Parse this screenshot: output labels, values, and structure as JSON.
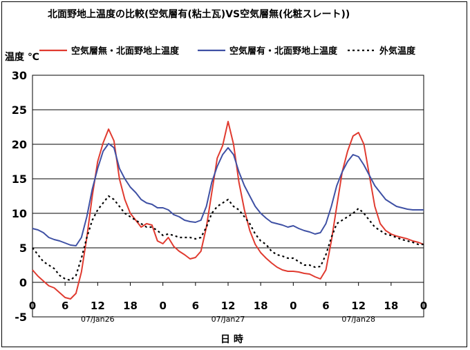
{
  "chart_data": {
    "type": "line",
    "title": "北面野地上温度の比較(空気層有(粘土瓦)VS空気層無(化粧スレート))",
    "ylabel": "温度 ℃",
    "xlabel": "日 時",
    "ylim": [
      -5,
      30
    ],
    "yticks": [
      "30",
      "25",
      "20",
      "15",
      "10",
      "5",
      "0",
      "-5"
    ],
    "xticks": [
      "0",
      "6",
      "12",
      "18",
      "0",
      "6",
      "12",
      "18",
      "0",
      "6",
      "12",
      "18",
      "0"
    ],
    "date_labels": [
      "07/Jan26",
      "07/Jan27",
      "07/Jan28"
    ],
    "grid": true,
    "legend_position": "top",
    "x_hours": [
      0,
      1,
      2,
      3,
      4,
      5,
      6,
      7,
      8,
      9,
      10,
      11,
      12,
      13,
      14,
      15,
      16,
      17,
      18,
      19,
      20,
      21,
      22,
      23,
      24,
      25,
      26,
      27,
      28,
      29,
      30,
      31,
      32,
      33,
      34,
      35,
      36,
      37,
      38,
      39,
      40,
      41,
      42,
      43,
      44,
      45,
      46,
      47,
      48,
      49,
      50,
      51,
      52,
      53,
      54,
      55,
      56,
      57,
      58,
      59,
      60,
      61,
      62,
      63,
      64,
      65,
      66,
      67,
      68,
      69,
      70,
      71,
      72
    ],
    "series": [
      {
        "name": "空気層無・北面野地上温度",
        "color": "#e03a2f",
        "style": "solid",
        "values": [
          1.8,
          0.9,
          0.2,
          -0.5,
          -0.8,
          -1.5,
          -2.2,
          -2.4,
          -1.6,
          1.5,
          6.5,
          12.5,
          17.5,
          20.2,
          22.2,
          20.5,
          15.0,
          12.0,
          10.0,
          9.0,
          8.0,
          8.5,
          8.3,
          6.0,
          5.6,
          6.5,
          5.2,
          4.5,
          4.0,
          3.4,
          3.6,
          4.5,
          8.0,
          13.0,
          18.0,
          19.8,
          23.3,
          20.0,
          14.5,
          10.5,
          7.5,
          5.5,
          4.3,
          3.5,
          2.8,
          2.2,
          1.8,
          1.6,
          1.6,
          1.5,
          1.3,
          1.2,
          0.8,
          0.5,
          1.8,
          6.0,
          11.0,
          16.0,
          19.0,
          21.2,
          21.7,
          20.0,
          15.5,
          11.0,
          8.5,
          7.5,
          7.0,
          6.7,
          6.5,
          6.3,
          6.0,
          5.8,
          5.5
        ]
      },
      {
        "name": "空気層有・北面野地上温度",
        "color": "#3e50a4",
        "style": "solid",
        "values": [
          7.8,
          7.6,
          7.2,
          6.5,
          6.2,
          6.0,
          5.7,
          5.4,
          5.3,
          6.5,
          9.5,
          13.5,
          16.5,
          19.0,
          20.1,
          19.5,
          16.5,
          15.0,
          13.8,
          13.0,
          12.0,
          11.5,
          11.3,
          10.8,
          10.8,
          10.5,
          9.8,
          9.5,
          9.0,
          8.8,
          8.7,
          9.0,
          11.0,
          14.5,
          16.8,
          18.5,
          19.5,
          18.5,
          16.0,
          14.0,
          12.5,
          11.0,
          10.0,
          9.3,
          8.7,
          8.5,
          8.3,
          8.0,
          8.2,
          7.8,
          7.5,
          7.3,
          7.0,
          7.2,
          8.5,
          11.0,
          14.0,
          16.0,
          17.5,
          18.5,
          18.2,
          17.0,
          15.5,
          14.0,
          13.0,
          12.0,
          11.5,
          11.0,
          10.8,
          10.6,
          10.5,
          10.5,
          10.5
        ]
      },
      {
        "name": "外気温度",
        "color": "#000000",
        "style": "dotted",
        "values": [
          5.0,
          4.0,
          3.0,
          2.5,
          2.0,
          1.0,
          0.5,
          0.3,
          1.0,
          3.5,
          6.5,
          9.0,
          10.5,
          11.5,
          12.5,
          12.0,
          11.0,
          10.0,
          9.5,
          9.0,
          8.5,
          8.0,
          8.0,
          7.5,
          6.8,
          7.0,
          6.8,
          6.5,
          6.5,
          6.5,
          6.3,
          6.5,
          8.0,
          10.0,
          11.0,
          11.5,
          12.0,
          11.0,
          10.5,
          9.5,
          8.5,
          7.0,
          6.0,
          5.5,
          4.5,
          4.0,
          3.8,
          3.5,
          3.5,
          3.0,
          2.5,
          2.5,
          2.2,
          2.3,
          4.0,
          6.5,
          8.5,
          9.0,
          9.5,
          10.0,
          10.7,
          10.0,
          9.0,
          8.0,
          7.5,
          7.0,
          6.8,
          6.5,
          6.2,
          6.0,
          5.8,
          5.5,
          5.5
        ]
      }
    ]
  }
}
